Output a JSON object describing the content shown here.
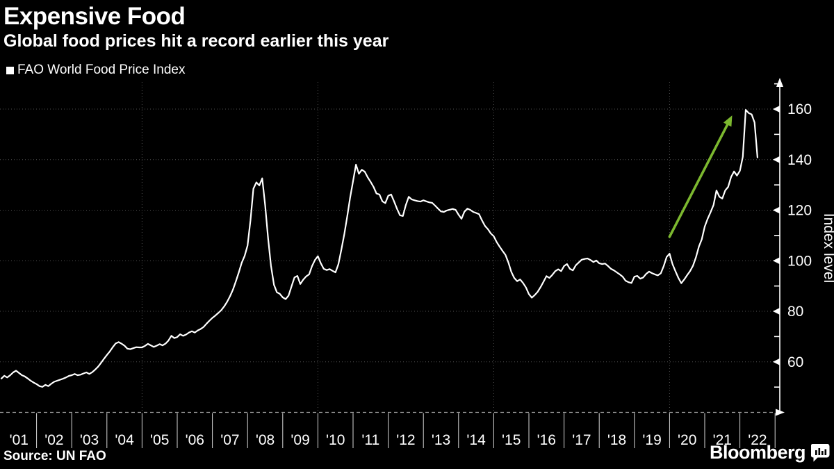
{
  "header": {
    "title": "Expensive Food",
    "subtitle": "Global food prices hit a record earlier this year"
  },
  "legend": {
    "label": "FAO World Food Price Index",
    "marker_color": "#ffffff"
  },
  "footer": {
    "source": "Source: UN FAO",
    "brand": "Bloomberg"
  },
  "chart_data": {
    "type": "line",
    "title": "Expensive Food",
    "series_name": "FAO World Food Price Index",
    "frequency": "monthly",
    "x_start": "2001-01",
    "x_end": "2022-07",
    "x_tick_labels": [
      "'01",
      "'02",
      "'03",
      "'04",
      "'05",
      "'06",
      "'07",
      "'08",
      "'09",
      "'10",
      "'11",
      "'12",
      "'13",
      "'14",
      "'15",
      "'16",
      "'17",
      "'18",
      "'19",
      "'20",
      "'21",
      "'22"
    ],
    "y_axis_label": "Index level",
    "y_ticks": [
      60,
      80,
      100,
      120,
      140,
      160
    ],
    "y_minor_ticks": [
      50,
      70,
      90,
      110,
      130,
      150,
      170
    ],
    "ylim": [
      40,
      171
    ],
    "grid": {
      "on": true,
      "h_values": [
        60,
        80,
        100,
        120,
        140,
        160
      ],
      "v_years": [
        2005,
        2010,
        2015,
        2020
      ]
    },
    "legend_position": "top-left",
    "values": [
      53.4,
      54.5,
      53.8,
      54.7,
      55.8,
      56.5,
      55.6,
      54.7,
      54.2,
      53.4,
      52.5,
      51.8,
      51.2,
      50.4,
      50.1,
      50.9,
      50.4,
      51.3,
      52.1,
      52.5,
      52.9,
      53.3,
      53.8,
      54.4,
      54.7,
      55.2,
      54.7,
      54.9,
      55.4,
      55.8,
      55.2,
      55.9,
      56.9,
      58.1,
      59.6,
      61.2,
      62.7,
      64.1,
      65.8,
      67.3,
      67.8,
      67.2,
      66.4,
      65.2,
      65.0,
      65.4,
      65.8,
      65.7,
      65.7,
      66.3,
      67.1,
      66.5,
      65.9,
      66.4,
      67.0,
      66.5,
      67.2,
      68.4,
      70.3,
      69.4,
      69.8,
      70.9,
      70.3,
      70.8,
      71.6,
      72.1,
      71.6,
      72.4,
      73.0,
      73.8,
      75.1,
      76.3,
      77.4,
      78.3,
      79.3,
      80.4,
      81.9,
      83.7,
      85.9,
      88.5,
      91.8,
      95.4,
      99.2,
      101.9,
      106.0,
      116.0,
      128.5,
      131.0,
      129.8,
      132.6,
      122.0,
      109.0,
      98.0,
      90.5,
      87.5,
      86.9,
      85.5,
      84.8,
      86.2,
      89.8,
      93.4,
      94.0,
      90.8,
      92.5,
      93.8,
      94.6,
      97.9,
      100.3,
      101.8,
      99.0,
      96.8,
      96.3,
      96.7,
      96.0,
      95.4,
      98.6,
      104.3,
      110.5,
      117.5,
      125.0,
      131.5,
      138.0,
      134.4,
      136.0,
      135.2,
      133.0,
      131.2,
      129.2,
      126.6,
      126.2,
      123.5,
      122.8,
      125.7,
      126.2,
      123.5,
      120.5,
      118.0,
      117.7,
      122.0,
      125.3,
      124.3,
      123.9,
      123.6,
      123.4,
      123.9,
      123.5,
      123.1,
      122.9,
      121.8,
      120.6,
      119.5,
      119.3,
      119.9,
      120.2,
      120.5,
      120.1,
      118.2,
      116.6,
      119.4,
      120.6,
      120.1,
      119.3,
      118.9,
      118.4,
      116.0,
      113.8,
      112.5,
      110.8,
      109.7,
      107.4,
      105.6,
      103.9,
      102.3,
      99.3,
      95.6,
      93.2,
      91.9,
      92.6,
      91.2,
      89.4,
      86.8,
      85.4,
      86.4,
      87.7,
      89.6,
      91.7,
      93.9,
      93.2,
      94.4,
      95.9,
      96.6,
      95.9,
      97.9,
      98.7,
      96.8,
      96.2,
      98.2,
      99.3,
      100.4,
      100.7,
      100.9,
      100.3,
      99.5,
      100.1,
      99.0,
      98.7,
      98.9,
      97.9,
      96.8,
      96.2,
      95.4,
      94.6,
      93.7,
      92.1,
      91.5,
      91.2,
      93.7,
      94.0,
      92.9,
      93.4,
      94.8,
      95.7,
      95.1,
      94.6,
      94.2,
      95.0,
      97.9,
      101.5,
      102.8,
      98.7,
      95.9,
      93.2,
      91.1,
      92.6,
      94.3,
      95.9,
      98.0,
      101.4,
      105.6,
      108.5,
      113.5,
      116.6,
      119.2,
      122.1,
      127.8,
      125.3,
      124.6,
      127.8,
      129.2,
      133.2,
      135.3,
      133.7,
      135.6,
      141.1,
      159.7,
      158.4,
      157.9,
      154.7,
      140.9
    ],
    "annotation_arrow": {
      "from_year": 2020.0,
      "from_value": 109.5,
      "to_year": 2021.78,
      "to_value": 157.5,
      "color": "#7cb82f"
    },
    "colors": {
      "line": "#ffffff",
      "grid": "#525252",
      "axis": "#ffffff",
      "baseline": "#a0a0a0",
      "tick_text": "#ffffff"
    }
  }
}
